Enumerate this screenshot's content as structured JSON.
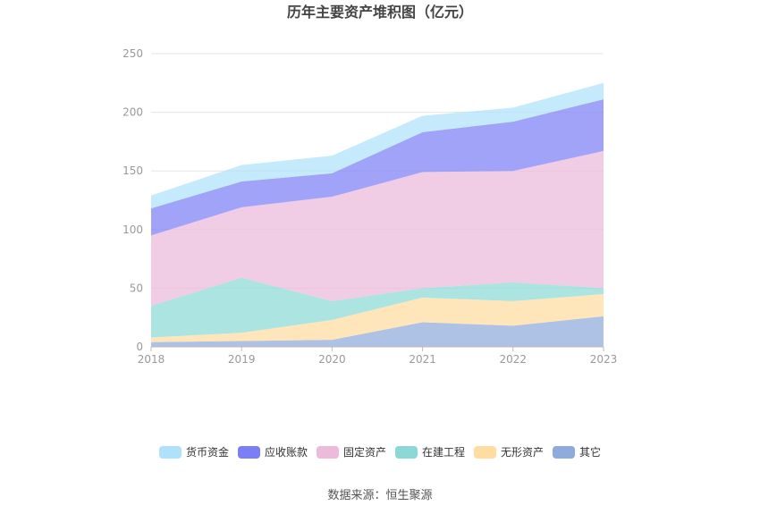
{
  "chart_data": {
    "type": "area",
    "stacked": true,
    "title": "历年主要资产堆积图（亿元）",
    "xlabel": "",
    "ylabel": "",
    "categories": [
      "2018",
      "2019",
      "2020",
      "2021",
      "2022",
      "2023"
    ],
    "ylim": [
      0,
      250
    ],
    "yticks": [
      0,
      50,
      100,
      150,
      200,
      250
    ],
    "grid": true,
    "legend_position": "bottom",
    "series": [
      {
        "name": "其它",
        "color": "#8faadc",
        "values": [
          4,
          5,
          6,
          21,
          18,
          26
        ]
      },
      {
        "name": "无形资产",
        "color": "#ffdca0",
        "values": [
          4,
          7,
          17,
          21,
          21,
          19
        ]
      },
      {
        "name": "在建工程",
        "color": "#8ad9d6",
        "values": [
          27,
          47,
          16,
          8,
          16,
          5
        ]
      },
      {
        "name": "固定资产",
        "color": "#ecbadb",
        "values": [
          60,
          60,
          89,
          99,
          95,
          117
        ]
      },
      {
        "name": "应收账款",
        "color": "#7b7ff5",
        "values": [
          23,
          22,
          20,
          34,
          42,
          44
        ]
      },
      {
        "name": "货币资金",
        "color": "#aee2fb",
        "values": [
          11,
          14,
          15,
          14,
          12,
          14
        ]
      }
    ],
    "legend_order": [
      "货币资金",
      "应收账款",
      "固定资产",
      "在建工程",
      "无形资产",
      "其它"
    ],
    "source": "数据来源：恒生聚源"
  }
}
